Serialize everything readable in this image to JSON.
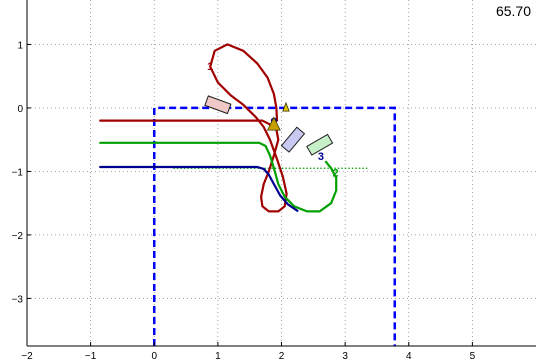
{
  "time_readout": "65.70",
  "colors": {
    "red": "#a00000",
    "green": "#00a000",
    "blue": "#000090",
    "region": "#0000ff",
    "axis": "#000000",
    "grid": "#808080"
  },
  "chart_data": {
    "type": "line",
    "title": "",
    "xlabel": "",
    "ylabel": "",
    "xlim": [
      -2.0,
      6.0
    ],
    "ylim": [
      -3.75,
      1.7
    ],
    "xticks": [
      -2,
      -1,
      0,
      1,
      2,
      3,
      4,
      5
    ],
    "yticks": [
      1,
      0,
      -1,
      -2,
      -3
    ],
    "grid": true,
    "series": [
      {
        "color": "red",
        "points": [
          [
            -0.85,
            -0.2
          ],
          [
            1.7,
            -0.2
          ],
          [
            1.8,
            -0.25
          ],
          [
            1.92,
            -0.34
          ],
          [
            1.95,
            -0.5
          ],
          [
            1.88,
            -0.75
          ],
          [
            1.8,
            -1.0
          ],
          [
            1.72,
            -1.2
          ],
          [
            1.68,
            -1.4
          ],
          [
            1.7,
            -1.55
          ],
          [
            1.8,
            -1.63
          ],
          [
            1.95,
            -1.63
          ],
          [
            2.05,
            -1.55
          ],
          [
            2.08,
            -1.35
          ],
          [
            2.02,
            -1.08
          ],
          [
            1.92,
            -0.78
          ],
          [
            1.82,
            -0.5
          ],
          [
            1.72,
            -0.3
          ],
          [
            1.6,
            -0.15
          ],
          [
            1.4,
            0.05
          ],
          [
            1.2,
            0.2
          ],
          [
            1.0,
            0.4
          ],
          [
            0.88,
            0.65
          ],
          [
            0.95,
            0.9
          ],
          [
            1.15,
            1.0
          ],
          [
            1.4,
            0.9
          ],
          [
            1.62,
            0.7
          ],
          [
            1.78,
            0.48
          ],
          [
            1.88,
            0.22
          ],
          [
            1.92,
            0.0
          ],
          [
            1.93,
            -0.2
          ]
        ]
      },
      {
        "color": "green",
        "points": [
          [
            -0.85,
            -0.55
          ],
          [
            1.65,
            -0.55
          ],
          [
            1.75,
            -0.6
          ],
          [
            1.82,
            -0.75
          ],
          [
            1.88,
            -0.95
          ],
          [
            1.95,
            -1.2
          ],
          [
            2.05,
            -1.4
          ],
          [
            2.2,
            -1.55
          ],
          [
            2.4,
            -1.63
          ],
          [
            2.6,
            -1.63
          ],
          [
            2.78,
            -1.5
          ],
          [
            2.86,
            -1.3
          ],
          [
            2.86,
            -1.1
          ],
          [
            2.78,
            -0.95
          ],
          [
            2.7,
            -0.85
          ]
        ]
      },
      {
        "color": "blue",
        "points": [
          [
            -0.85,
            -0.93
          ],
          [
            1.62,
            -0.93
          ],
          [
            1.72,
            -0.96
          ],
          [
            1.8,
            -1.05
          ],
          [
            1.88,
            -1.2
          ],
          [
            1.98,
            -1.38
          ],
          [
            2.1,
            -1.52
          ],
          [
            2.25,
            -1.62
          ]
        ]
      }
    ],
    "region": {
      "x": [
        0.0,
        3.78
      ],
      "y": [
        -3.75,
        0.0
      ],
      "color": "region"
    },
    "dotted_line": {
      "y": -0.95,
      "x": [
        0.3,
        3.35
      ],
      "color": "green"
    },
    "vehicles": [
      {
        "x": 1.0,
        "y": 0.05,
        "angle": 20,
        "fill": "#f0c8c8"
      },
      {
        "x": 2.18,
        "y": -0.5,
        "angle": -50,
        "fill": "#c8c8f0"
      },
      {
        "x": 2.6,
        "y": -0.58,
        "angle": -30,
        "fill": "#c8f0c8"
      }
    ],
    "labels": [
      {
        "text": "1",
        "x": 0.88,
        "y": 0.6,
        "color": "red"
      },
      {
        "text": "3",
        "x": 2.62,
        "y": -0.82,
        "color": "blue"
      },
      {
        "text": "2",
        "x": 2.85,
        "y": -1.08,
        "color": "green"
      }
    ]
  }
}
